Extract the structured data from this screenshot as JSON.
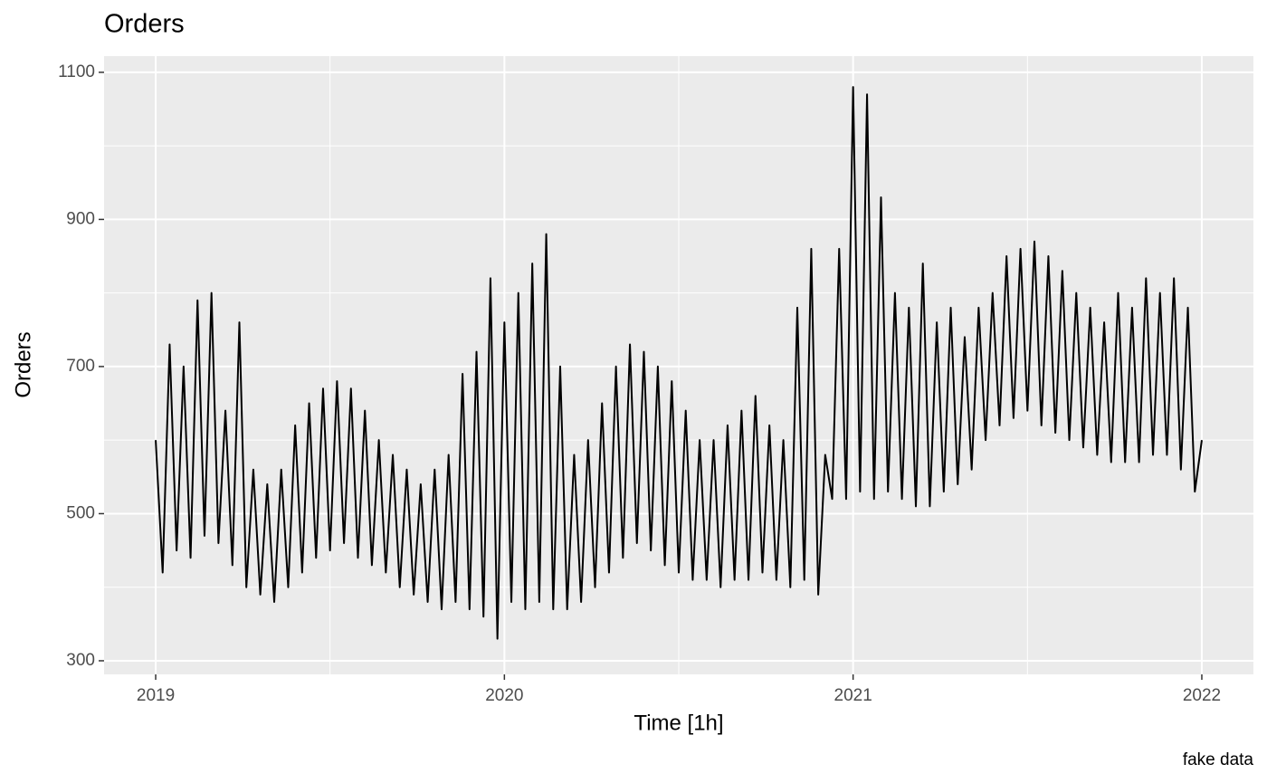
{
  "chart_data": {
    "type": "line",
    "title": "Orders",
    "x_label": "Time [1h]",
    "y_label": "Orders",
    "caption": "fake data",
    "grid": true,
    "xlim": [
      2018.852,
      2022.148
    ],
    "ylim": [
      281.5,
      1122
    ],
    "xticks": [
      2019,
      2020,
      2021,
      2022
    ],
    "yticks": [
      300,
      500,
      700,
      900,
      1100
    ],
    "x": [
      2019,
      2019.02,
      2019.04,
      2019.06,
      2019.08,
      2019.1,
      2019.12,
      2019.14,
      2019.16,
      2019.18,
      2019.2,
      2019.22,
      2019.24,
      2019.26,
      2019.28,
      2019.3,
      2019.32,
      2019.34,
      2019.36,
      2019.38,
      2019.4,
      2019.42,
      2019.44,
      2019.46,
      2019.48,
      2019.5,
      2019.52,
      2019.54,
      2019.56,
      2019.58,
      2019.6,
      2019.62,
      2019.64,
      2019.66,
      2019.68,
      2019.7,
      2019.72,
      2019.74,
      2019.76,
      2019.78,
      2019.8,
      2019.82,
      2019.84,
      2019.86,
      2019.88,
      2019.9,
      2019.92,
      2019.94,
      2019.96,
      2019.98,
      2020,
      2020.02,
      2020.04,
      2020.06,
      2020.08,
      2020.1,
      2020.12,
      2020.14,
      2020.16,
      2020.18,
      2020.2,
      2020.22,
      2020.24,
      2020.26,
      2020.28,
      2020.3,
      2020.32,
      2020.34,
      2020.36,
      2020.38,
      2020.4,
      2020.42,
      2020.44,
      2020.46,
      2020.48,
      2020.5,
      2020.52,
      2020.54,
      2020.56,
      2020.58,
      2020.6,
      2020.62,
      2020.64,
      2020.66,
      2020.68,
      2020.7,
      2020.72,
      2020.74,
      2020.76,
      2020.78,
      2020.8,
      2020.82,
      2020.84,
      2020.86,
      2020.88,
      2020.9,
      2020.92,
      2020.94,
      2020.96,
      2020.98,
      2021,
      2021.02,
      2021.04,
      2021.06,
      2021.08,
      2021.1,
      2021.12,
      2021.14,
      2021.16,
      2021.18,
      2021.2,
      2021.22,
      2021.24,
      2021.26,
      2021.28,
      2021.3,
      2021.32,
      2021.34,
      2021.36,
      2021.38,
      2021.4,
      2021.42,
      2021.44,
      2021.46,
      2021.48,
      2021.5,
      2021.52,
      2021.54,
      2021.56,
      2021.58,
      2021.6,
      2021.62,
      2021.64,
      2021.66,
      2021.68,
      2021.7,
      2021.72,
      2021.74,
      2021.76,
      2021.78,
      2021.8,
      2021.82,
      2021.84,
      2021.86,
      2021.88,
      2021.9,
      2021.92,
      2021.94,
      2021.96,
      2021.98,
      2022
    ],
    "series": [
      {
        "color": "#000000",
        "values": [
          600,
          420,
          730,
          450,
          700,
          440,
          790,
          470,
          800,
          460,
          640,
          430,
          760,
          400,
          560,
          390,
          540,
          380,
          560,
          400,
          620,
          420,
          650,
          440,
          670,
          450,
          680,
          460,
          670,
          440,
          640,
          430,
          600,
          420,
          580,
          400,
          560,
          390,
          540,
          380,
          560,
          370,
          580,
          380,
          690,
          370,
          720,
          360,
          820,
          330,
          760,
          380,
          800,
          370,
          840,
          380,
          880,
          370,
          700,
          370,
          580,
          380,
          600,
          400,
          650,
          420,
          700,
          440,
          730,
          460,
          720,
          450,
          700,
          430,
          680,
          420,
          640,
          410,
          600,
          410,
          600,
          400,
          620,
          410,
          640,
          410,
          660,
          420,
          620,
          410,
          600,
          400,
          780,
          410,
          860,
          390,
          580,
          520,
          860,
          520,
          1080,
          530,
          1070,
          520,
          930,
          530,
          800,
          520,
          780,
          510,
          840,
          510,
          760,
          530,
          780,
          540,
          740,
          560,
          780,
          600,
          800,
          620,
          850,
          630,
          860,
          640,
          870,
          620,
          850,
          610,
          830,
          600,
          800,
          590,
          780,
          580,
          760,
          570,
          800,
          570,
          780,
          570,
          820,
          580,
          800,
          580,
          820,
          560,
          780,
          530,
          600
        ]
      }
    ]
  }
}
